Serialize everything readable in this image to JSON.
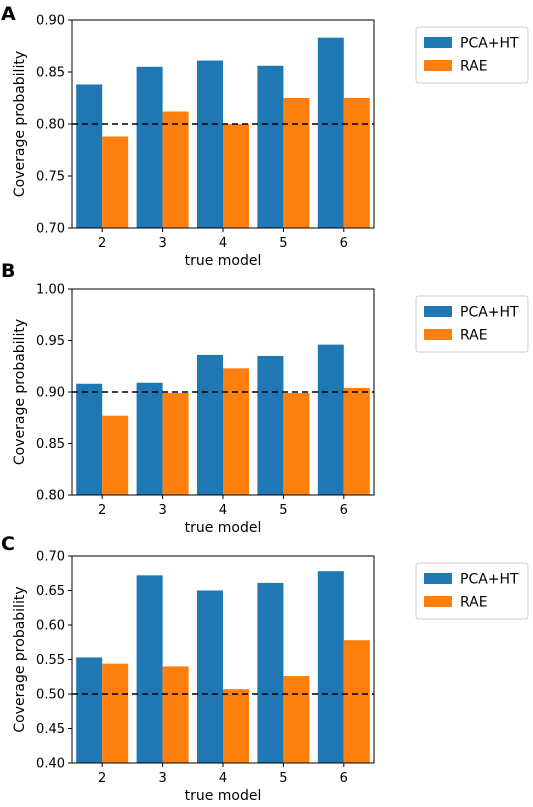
{
  "chart_data": [
    {
      "panel_label": "A",
      "type": "bar",
      "categories": [
        "2",
        "3",
        "4",
        "5",
        "6"
      ],
      "series": [
        {
          "name": "PCA+HT",
          "color": "#1f77b4",
          "values": [
            0.838,
            0.855,
            0.861,
            0.856,
            0.883
          ]
        },
        {
          "name": "RAE",
          "color": "#ff7f0e",
          "values": [
            0.788,
            0.812,
            0.8,
            0.825,
            0.825
          ]
        }
      ],
      "xlabel": "true model",
      "ylabel": "Coverage probability",
      "ylim": [
        0.7,
        0.9
      ],
      "yticks": [
        "0.70",
        "0.75",
        "0.80",
        "0.85",
        "0.90"
      ],
      "reference_line": 0.8,
      "legend_placement": "outside-top-right",
      "grid": false
    },
    {
      "panel_label": "B",
      "type": "bar",
      "categories": [
        "2",
        "3",
        "4",
        "5",
        "6"
      ],
      "series": [
        {
          "name": "PCA+HT",
          "color": "#1f77b4",
          "values": [
            0.908,
            0.909,
            0.936,
            0.935,
            0.946
          ]
        },
        {
          "name": "RAE",
          "color": "#ff7f0e",
          "values": [
            0.877,
            0.899,
            0.923,
            0.899,
            0.904
          ]
        }
      ],
      "xlabel": "true model",
      "ylabel": "Coverage probability",
      "ylim": [
        0.8,
        1.0
      ],
      "yticks": [
        "0.80",
        "0.85",
        "0.90",
        "0.95",
        "1.00"
      ],
      "reference_line": 0.9,
      "legend_placement": "outside-top-right",
      "grid": false
    },
    {
      "panel_label": "C",
      "type": "bar",
      "categories": [
        "2",
        "3",
        "4",
        "5",
        "6"
      ],
      "series": [
        {
          "name": "PCA+HT",
          "color": "#1f77b4",
          "values": [
            0.553,
            0.672,
            0.65,
            0.661,
            0.678
          ]
        },
        {
          "name": "RAE",
          "color": "#ff7f0e",
          "values": [
            0.544,
            0.54,
            0.507,
            0.526,
            0.578
          ]
        }
      ],
      "xlabel": "true model",
      "ylabel": "Coverage probability",
      "ylim": [
        0.4,
        0.7
      ],
      "yticks": [
        "0.40",
        "0.45",
        "0.50",
        "0.55",
        "0.60",
        "0.65",
        "0.70"
      ],
      "reference_line": 0.5,
      "legend_placement": "outside-top-right",
      "grid": false
    }
  ]
}
